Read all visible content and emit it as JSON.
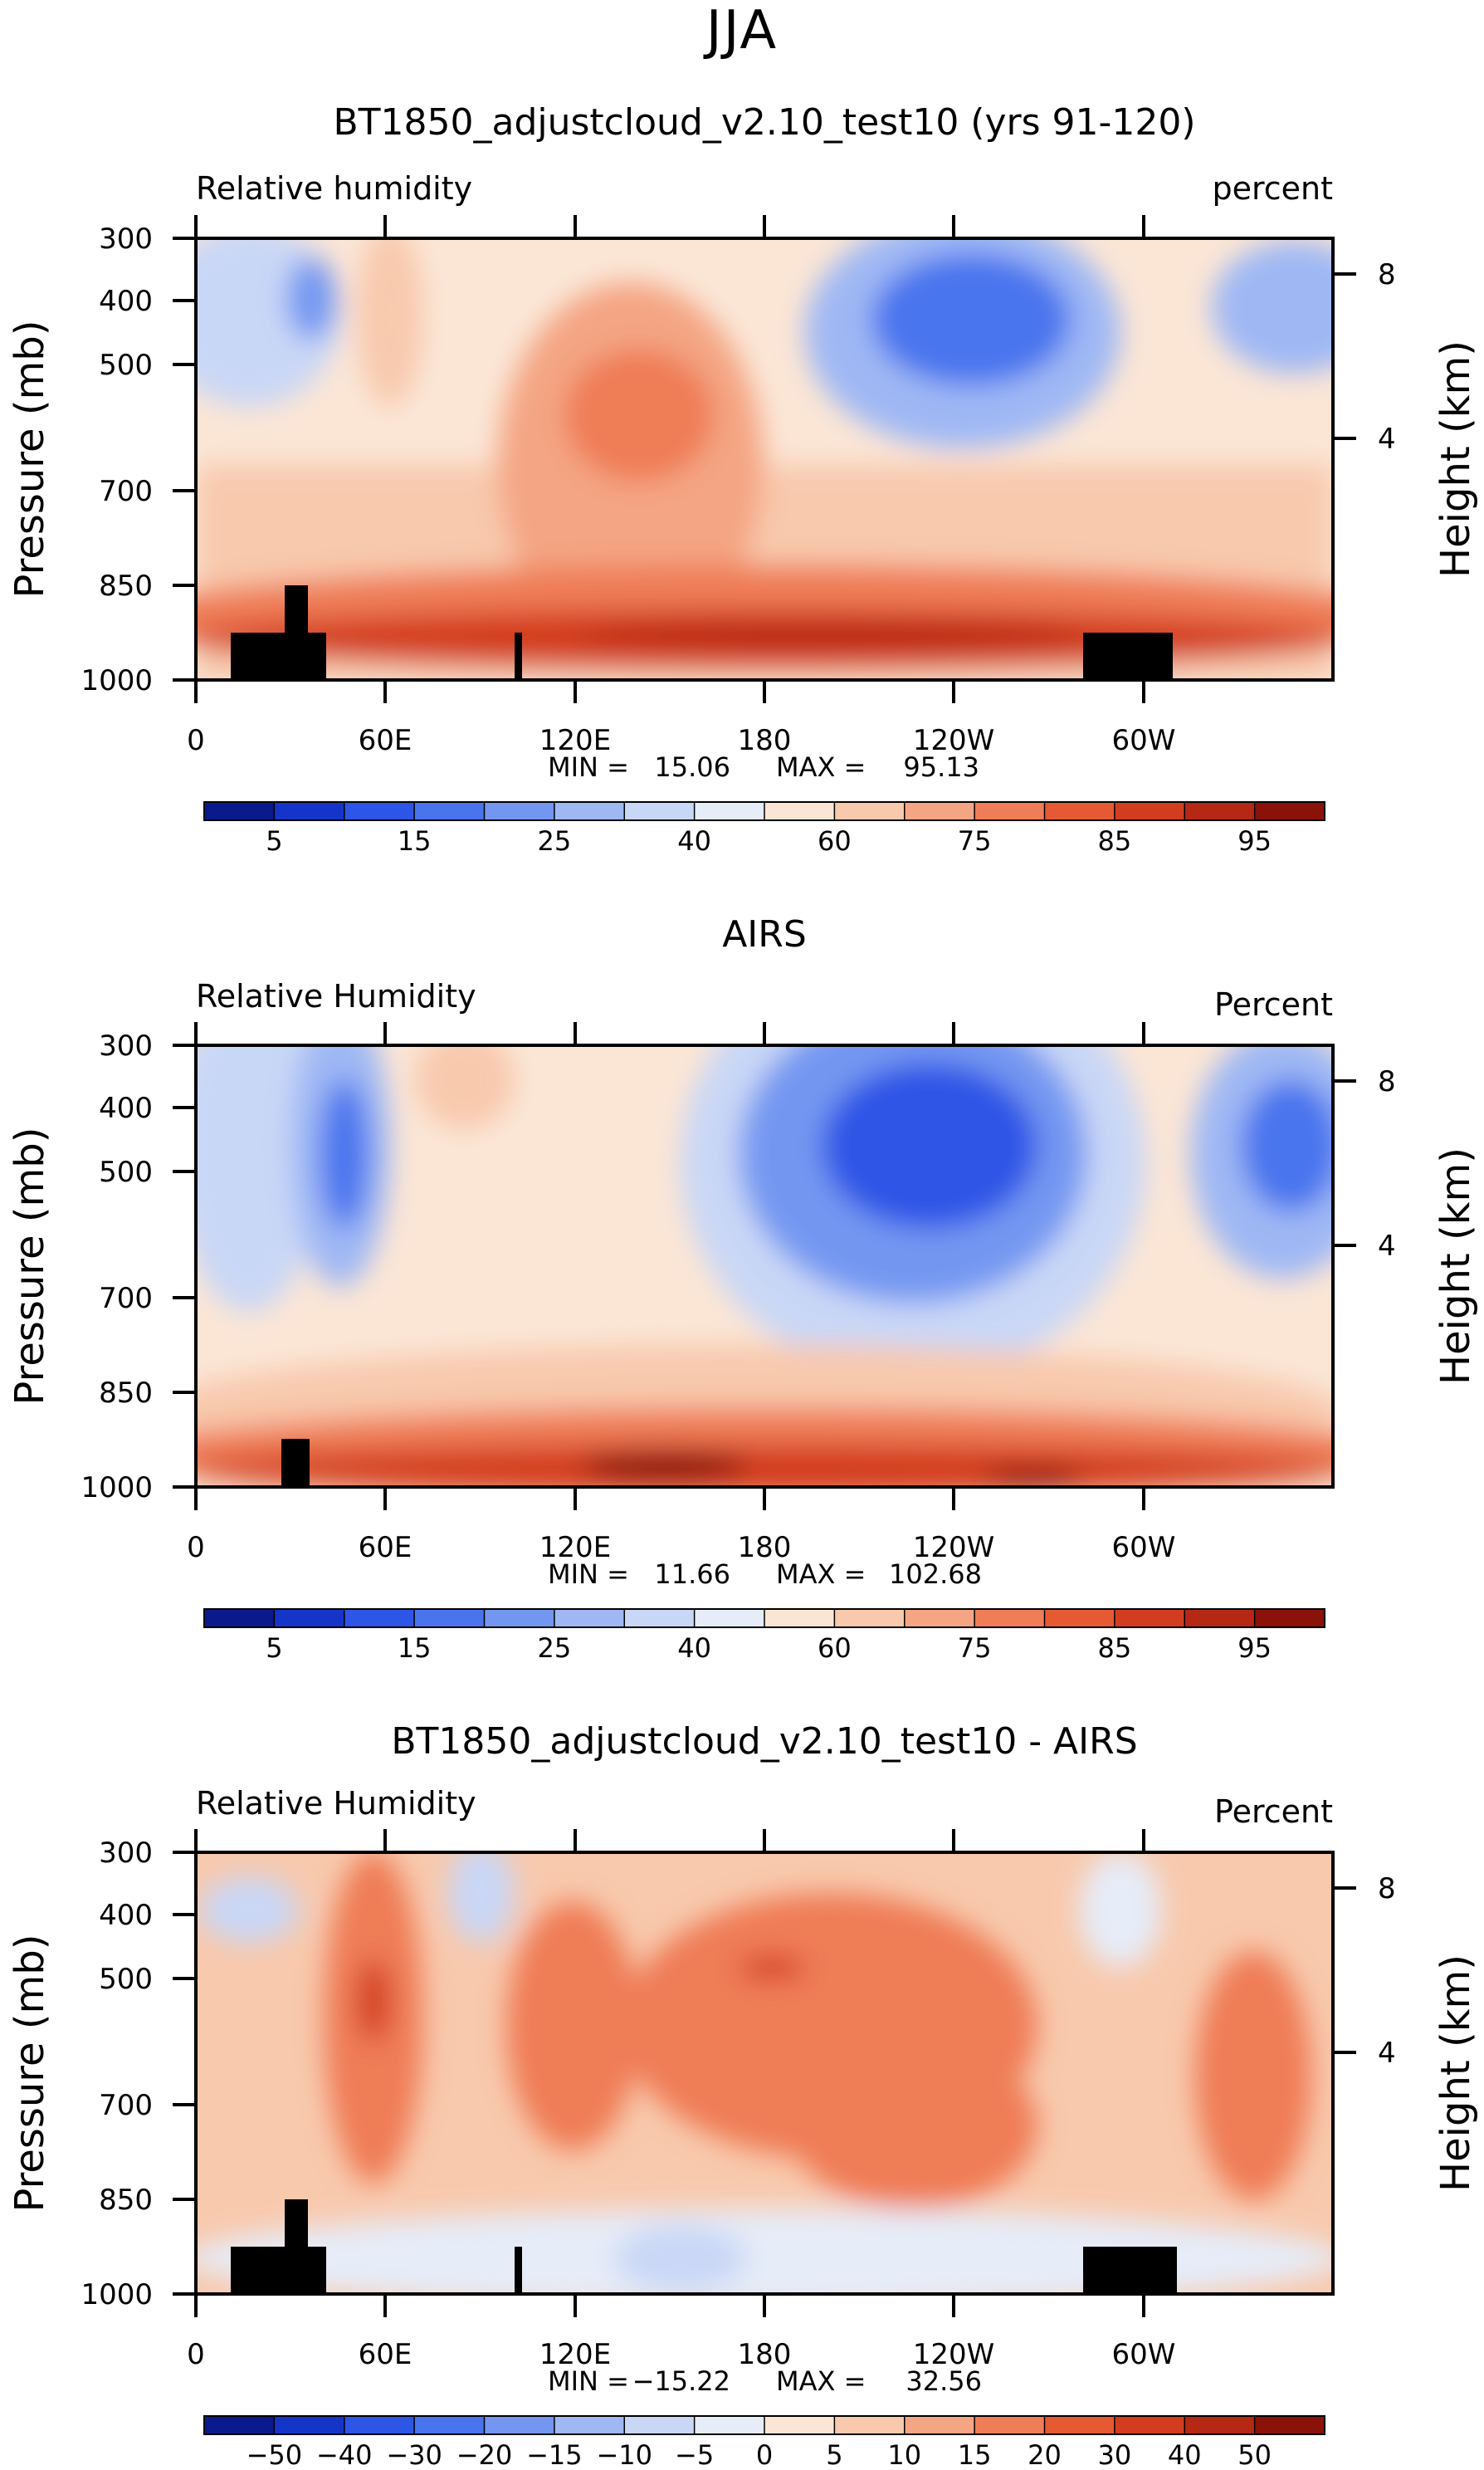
{
  "figure": {
    "season": "JJA"
  },
  "chart_data": [
    {
      "type": "heatmap",
      "title": "BT1850_adjustcloud_v2.10_test10 (yrs 91-120)",
      "variable_label": "Relative humidity",
      "units_label": "percent",
      "ylabel": "Pressure (mb)",
      "y2label": "Height (km)",
      "x_ticks": [
        "0",
        "60E",
        "120E",
        "180",
        "120W",
        "60W"
      ],
      "y_ticks": [
        "300",
        "400",
        "500",
        "700",
        "850",
        "1000"
      ],
      "y2_ticks": [
        "8",
        "4"
      ],
      "xlim_deg_east": [
        0,
        360
      ],
      "ylim_mb": [
        1000,
        300
      ],
      "stats": {
        "min_label": "MIN =",
        "min": "15.06",
        "max_label": "MAX =",
        "max": "95.13"
      },
      "colorbar": {
        "labels": [
          "5",
          "15",
          "25",
          "40",
          "60",
          "75",
          "85",
          "95"
        ]
      },
      "terrain_mask": "present"
    },
    {
      "type": "heatmap",
      "title": "AIRS",
      "variable_label": "Relative Humidity",
      "units_label": "Percent",
      "ylabel": "Pressure (mb)",
      "y2label": "Height (km)",
      "x_ticks": [
        "0",
        "60E",
        "120E",
        "180",
        "120W",
        "60W"
      ],
      "y_ticks": [
        "300",
        "400",
        "500",
        "700",
        "850",
        "1000"
      ],
      "y2_ticks": [
        "8",
        "4"
      ],
      "xlim_deg_east": [
        0,
        360
      ],
      "ylim_mb": [
        1000,
        300
      ],
      "stats": {
        "min_label": "MIN =",
        "min": "11.66",
        "max_label": "MAX =",
        "max": "102.68"
      },
      "colorbar": {
        "labels": [
          "5",
          "15",
          "25",
          "40",
          "60",
          "75",
          "85",
          "95"
        ]
      },
      "terrain_mask": "present"
    },
    {
      "type": "heatmap",
      "title": "BT1850_adjustcloud_v2.10_test10 - AIRS",
      "variable_label": "Relative Humidity",
      "units_label": "Percent",
      "ylabel": "Pressure (mb)",
      "y2label": "Height (km)",
      "x_ticks": [
        "0",
        "60E",
        "120E",
        "180",
        "120W",
        "60W"
      ],
      "y_ticks": [
        "300",
        "400",
        "500",
        "700",
        "850",
        "1000"
      ],
      "y2_ticks": [
        "8",
        "4"
      ],
      "xlim_deg_east": [
        0,
        360
      ],
      "ylim_mb": [
        1000,
        300
      ],
      "stats": {
        "min_label": "MIN =",
        "min": "−15.22",
        "max_label": "MAX =",
        "max": "32.56"
      },
      "colorbar": {
        "labels": [
          "−50",
          "−40",
          "−30",
          "−20",
          "−15",
          "−10",
          "−5",
          "0",
          "5",
          "10",
          "15",
          "20",
          "30",
          "40",
          "50"
        ]
      },
      "terrain_mask": "present"
    }
  ],
  "palette": {
    "colors": [
      "#0a1a8c",
      "#1535c8",
      "#2d55e6",
      "#4a74ee",
      "#7397f1",
      "#9fb8f4",
      "#c9d7f6",
      "#e6ecf8",
      "#fbe6d6",
      "#f8c9ad",
      "#f4a583",
      "#ef7d57",
      "#e55a33",
      "#d33d1f",
      "#b42814",
      "#8a1209"
    ],
    "mask": "#000000"
  }
}
